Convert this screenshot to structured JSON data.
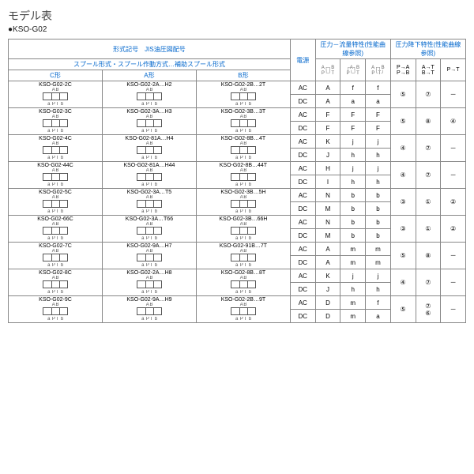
{
  "title": "モデル表",
  "subtitle": "●KSO-G02",
  "headers": {
    "model_group": "形式記号　JIS油圧図配号",
    "spool": "スプール形式・スプール作動方式…補助スプール形式",
    "c": "C形",
    "a": "A形",
    "b": "B形",
    "power": "電源",
    "press_flow": "圧力－流量特性(性能曲線参照)",
    "press_drop": "圧力降下特性(性能曲線参照)",
    "pa": "P→A\nP→B",
    "at": "A→T\nB→T",
    "pt": "P→T",
    "sym_a": "A",
    "sym_b": "B",
    "sym_p": "P",
    "sym_t": "T"
  },
  "rows": [
    {
      "c": "KSO-G02-2C",
      "a": "KSO-G02-2A…H2",
      "b": "KSO-G02-2B…2T",
      "ac": [
        "A",
        "f",
        "f"
      ],
      "dc": [
        "A",
        "a",
        "a"
      ],
      "pd": [
        "⑤",
        "⑦",
        "－"
      ]
    },
    {
      "c": "KSO-G02-3C",
      "a": "KSO-G02-3A…H3",
      "b": "KSO-G02-3B…3T",
      "ac": [
        "F",
        "F",
        "F"
      ],
      "dc": [
        "F",
        "F",
        "F"
      ],
      "pd": [
        "⑤",
        "⑧",
        "④"
      ]
    },
    {
      "c": "KSO-G02-4C",
      "a": "KSO-G02-81A…H4",
      "b": "KSO-G02-8B…4T",
      "ac": [
        "K",
        "j",
        "j"
      ],
      "dc": [
        "J",
        "h",
        "h"
      ],
      "pd": [
        "④",
        "⑦",
        "－"
      ]
    },
    {
      "c": "KSO-G02-44C",
      "a": "KSO-G02-81A…H44",
      "b": "KSO-G02-8B…44T",
      "ac": [
        "H",
        "j",
        "j"
      ],
      "dc": [
        "I",
        "h",
        "h"
      ],
      "pd": [
        "④",
        "⑦",
        "－"
      ]
    },
    {
      "c": "KSO-G02-5C",
      "a": "KSO-G02-3A…T5",
      "b": "KSO-G02-3B…5H",
      "ac": [
        "N",
        "b",
        "b"
      ],
      "dc": [
        "M",
        "b",
        "b"
      ],
      "pd": [
        "③",
        "①",
        "②"
      ]
    },
    {
      "c": "KSO-G02-66C",
      "a": "KSO-G02-3A…T66",
      "b": "KSO-G02-3B…66H",
      "ac": [
        "N",
        "b",
        "b"
      ],
      "dc": [
        "M",
        "b",
        "b"
      ],
      "pd": [
        "③",
        "①",
        "②"
      ]
    },
    {
      "c": "KSO-G02-7C",
      "a": "KSO-G02-9A…H7",
      "b": "KSO-G02-91B…7T",
      "ac": [
        "A",
        "m",
        "m"
      ],
      "dc": [
        "A",
        "m",
        "m"
      ],
      "pd": [
        "⑤",
        "⑧",
        "－"
      ]
    },
    {
      "c": "KSO-G02-8C",
      "a": "KSO-G02-2A…H8",
      "b": "KSO-G02-8B…8T",
      "ac": [
        "K",
        "j",
        "j"
      ],
      "dc": [
        "J",
        "h",
        "h"
      ],
      "pd": [
        "④",
        "⑦",
        "－"
      ]
    },
    {
      "c": "KSO-G02-9C",
      "a": "KSO-G02-9A…H9",
      "b": "KSO-G02-2B…9T",
      "ac": [
        "D",
        "m",
        "f"
      ],
      "dc": [
        "D",
        "m",
        "a"
      ],
      "pd": [
        "⑤",
        "⑦\n⑥",
        "－"
      ]
    }
  ]
}
